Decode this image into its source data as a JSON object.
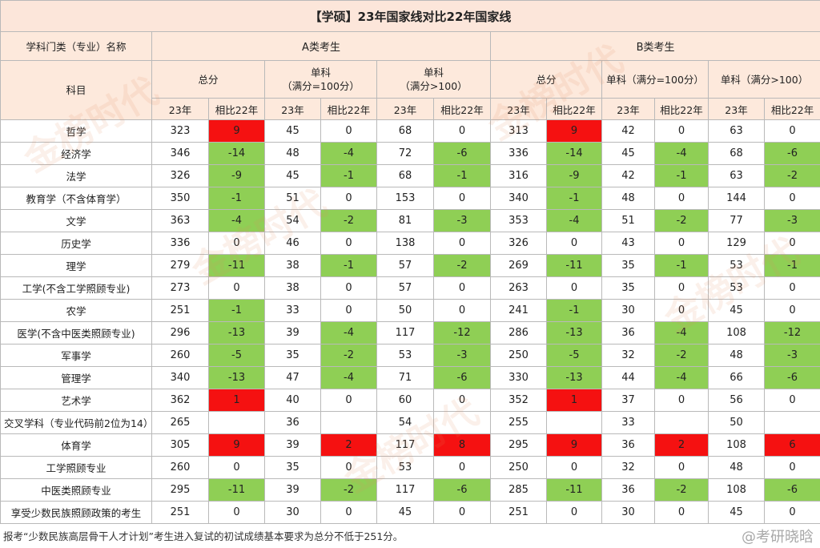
{
  "title": "【学硕】23年国家线对比22年国家线",
  "header": {
    "subject_col": "学科门类（专业）名称",
    "subject_sub": "科目",
    "groupA": "A类考生",
    "groupB": "B类考生",
    "total": "总分",
    "single100": "单科\n（满分=100分）",
    "single100_inline": "单科（满分=100分）",
    "singleGt100": "单科\n（满分>100）",
    "singleGt100_inline": "单科（满分>100）",
    "year23": "23年",
    "vs22": "相比22年"
  },
  "rows": [
    {
      "name": "哲学",
      "a": [
        "323",
        "9",
        "45",
        "0",
        "68",
        "0"
      ],
      "b": [
        "313",
        "9",
        "42",
        "0",
        "63",
        "0"
      ]
    },
    {
      "name": "经济学",
      "a": [
        "346",
        "-14",
        "48",
        "-4",
        "72",
        "-6"
      ],
      "b": [
        "336",
        "-14",
        "45",
        "-4",
        "68",
        "-6"
      ]
    },
    {
      "name": "法学",
      "a": [
        "326",
        "-9",
        "45",
        "-1",
        "68",
        "-1"
      ],
      "b": [
        "316",
        "-9",
        "42",
        "-1",
        "63",
        "-2"
      ]
    },
    {
      "name": "教育学（不含体育学）",
      "a": [
        "350",
        "-1",
        "51",
        "0",
        "153",
        "0"
      ],
      "b": [
        "340",
        "-1",
        "48",
        "0",
        "144",
        "0"
      ]
    },
    {
      "name": "文学",
      "a": [
        "363",
        "-4",
        "54",
        "-2",
        "81",
        "-3"
      ],
      "b": [
        "353",
        "-4",
        "51",
        "-2",
        "77",
        "-3"
      ]
    },
    {
      "name": "历史学",
      "a": [
        "336",
        "0",
        "46",
        "0",
        "138",
        "0"
      ],
      "b": [
        "326",
        "0",
        "43",
        "0",
        "129",
        "0"
      ]
    },
    {
      "name": "理学",
      "a": [
        "279",
        "-11",
        "38",
        "-1",
        "57",
        "-2"
      ],
      "b": [
        "269",
        "-11",
        "35",
        "-1",
        "53",
        "-1"
      ]
    },
    {
      "name": "工学(不含工学照顾专业)",
      "a": [
        "273",
        "0",
        "38",
        "0",
        "57",
        "0"
      ],
      "b": [
        "263",
        "0",
        "35",
        "0",
        "53",
        "0"
      ]
    },
    {
      "name": "农学",
      "a": [
        "251",
        "-1",
        "33",
        "0",
        "50",
        "0"
      ],
      "b": [
        "241",
        "-1",
        "30",
        "0",
        "45",
        "0"
      ]
    },
    {
      "name": "医学(不含中医类照顾专业)",
      "a": [
        "296",
        "-13",
        "39",
        "-4",
        "117",
        "-12"
      ],
      "b": [
        "286",
        "-13",
        "36",
        "-4",
        "108",
        "-12"
      ]
    },
    {
      "name": "军事学",
      "a": [
        "260",
        "-5",
        "35",
        "-2",
        "53",
        "-3"
      ],
      "b": [
        "250",
        "-5",
        "32",
        "-2",
        "48",
        "-3"
      ]
    },
    {
      "name": "管理学",
      "a": [
        "340",
        "-13",
        "47",
        "-4",
        "71",
        "-6"
      ],
      "b": [
        "330",
        "-13",
        "44",
        "-4",
        "66",
        "-6"
      ]
    },
    {
      "name": "艺术学",
      "a": [
        "362",
        "1",
        "40",
        "0",
        "60",
        "0"
      ],
      "b": [
        "352",
        "1",
        "37",
        "0",
        "56",
        "0"
      ]
    },
    {
      "name": "交叉学科（专业代码前2位为14）",
      "a": [
        "265",
        "",
        "36",
        "",
        "54",
        ""
      ],
      "b": [
        "255",
        "",
        "33",
        "",
        "50",
        ""
      ],
      "left": true
    },
    {
      "name": "体育学",
      "a": [
        "305",
        "9",
        "39",
        "2",
        "117",
        "8"
      ],
      "b": [
        "295",
        "9",
        "36",
        "2",
        "108",
        "6"
      ]
    },
    {
      "name": "工学照顾专业",
      "a": [
        "260",
        "0",
        "35",
        "0",
        "53",
        "0"
      ],
      "b": [
        "250",
        "0",
        "32",
        "0",
        "48",
        "0"
      ]
    },
    {
      "name": "中医类照顾专业",
      "a": [
        "295",
        "-11",
        "39",
        "-2",
        "117",
        "-6"
      ],
      "b": [
        "285",
        "-11",
        "36",
        "-2",
        "108",
        "-6"
      ]
    },
    {
      "name": "享受少数民族照顾政策的考生",
      "a": [
        "251",
        "0",
        "30",
        "0",
        "45",
        "0"
      ],
      "b": [
        "251",
        "0",
        "30",
        "0",
        "45",
        "0"
      ]
    }
  ],
  "footer": "报考“少数民族高层骨干人才计划”考生进入复试的初试成绩基本要求为总分不低于251分。",
  "watermark": "金榜时代",
  "watermark_social": "@考研晓晗",
  "colors": {
    "increase": "#f51111",
    "decrease": "#8fcf55",
    "header_bg": "#fde9dc"
  }
}
